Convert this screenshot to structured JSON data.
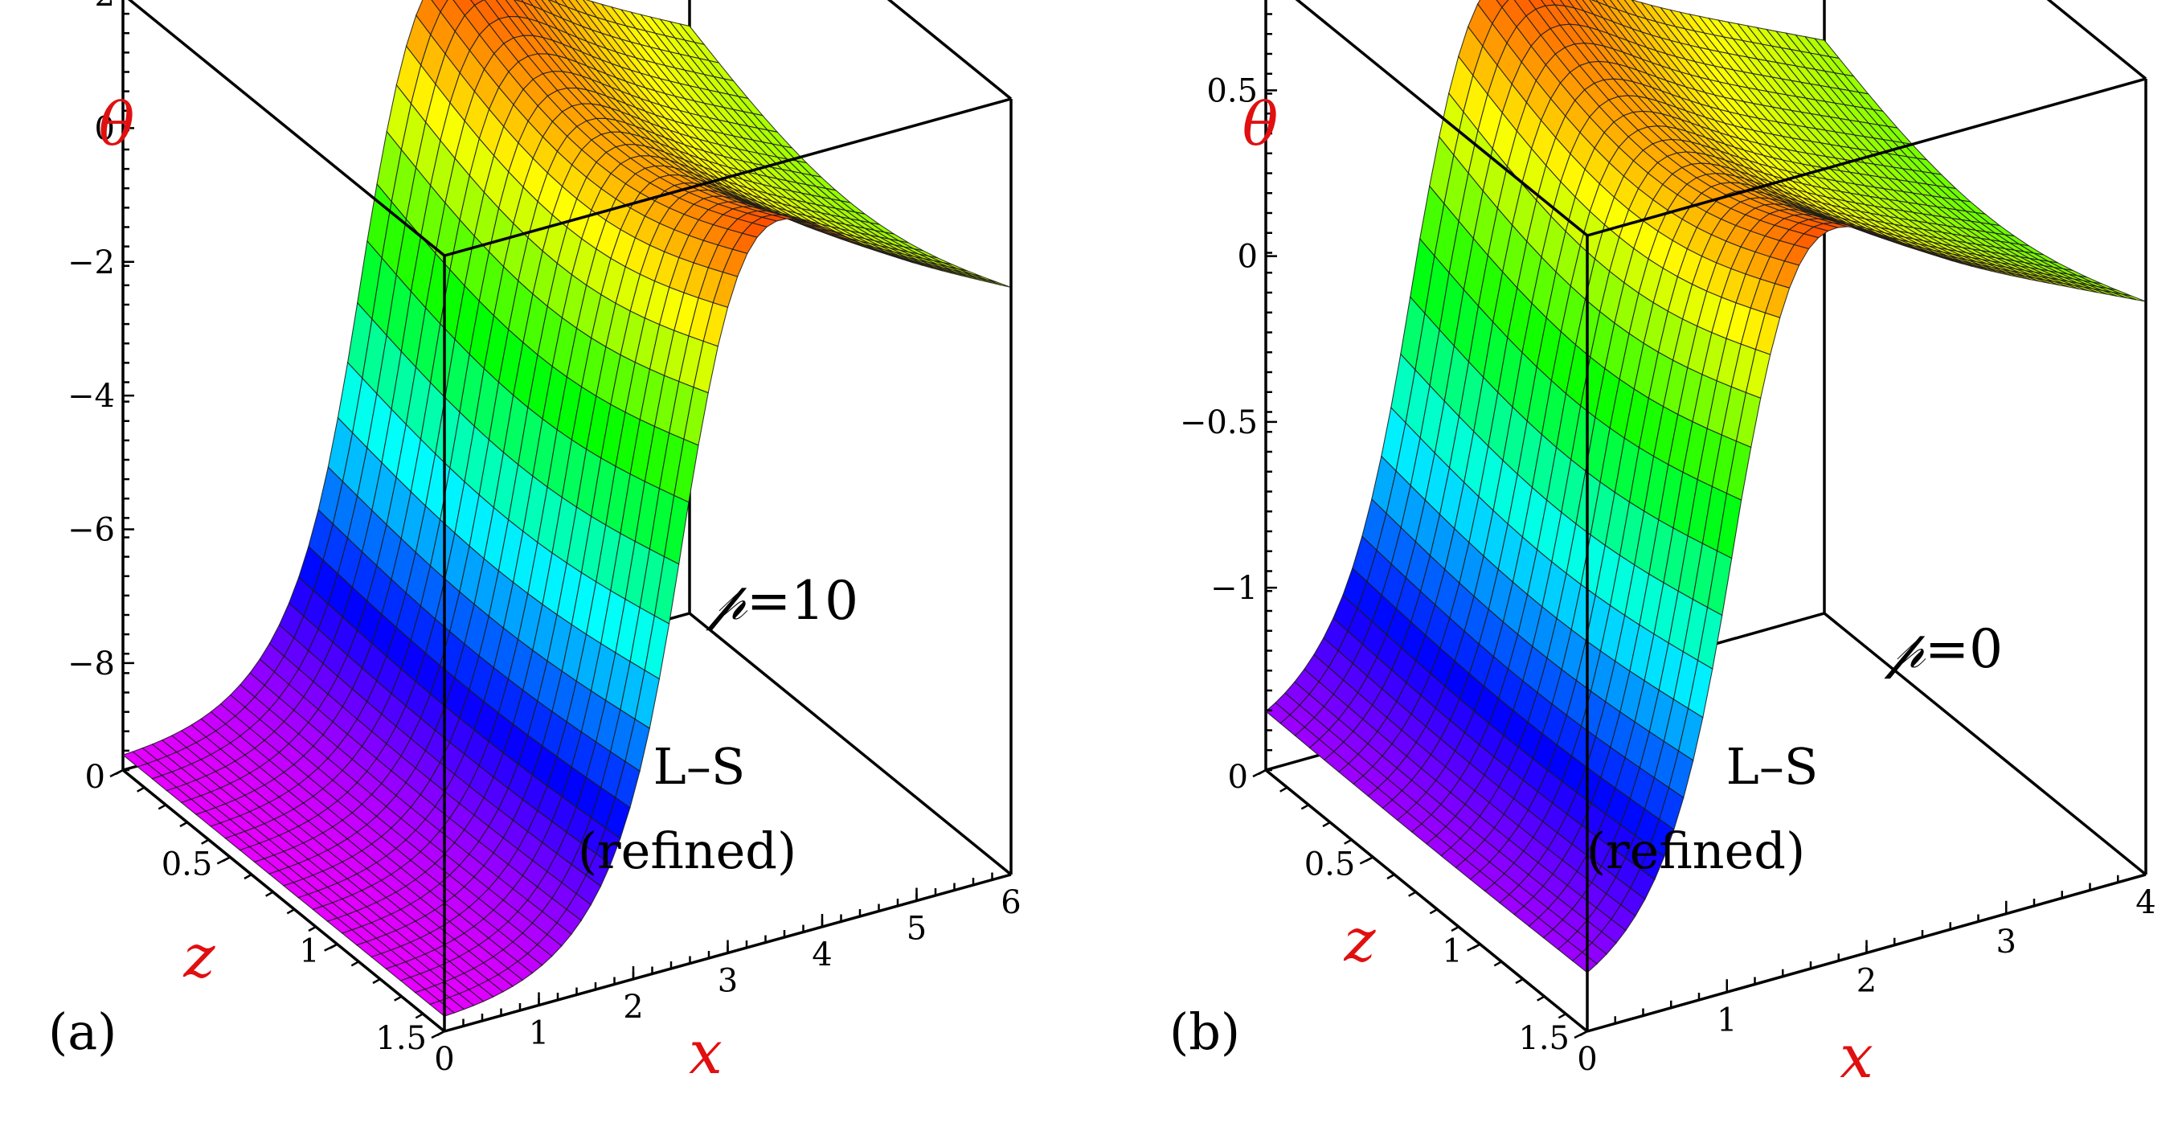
{
  "chart_data": [
    {
      "type": "surface3d",
      "panel_label": "(a)",
      "annotation_method": "L–S",
      "annotation_detail": "(refined)",
      "param_symbol": "𝓅",
      "param_text": "=10",
      "zlabel": "θ",
      "xlabel": "x",
      "ylabel": "z",
      "x_range": [
        0,
        6
      ],
      "z_range": [
        0,
        1.5
      ],
      "theta_range": [
        -9.6,
        2
      ],
      "x_ticks": [
        "0",
        "1",
        "2",
        "3",
        "4",
        "5",
        "6"
      ],
      "z_ticks": [
        "0",
        "0.5",
        "1",
        "1.5"
      ],
      "theta_ticks": [
        "2",
        "0",
        "−2",
        "−4",
        "−6",
        "−8"
      ],
      "x_tick_values": [
        0,
        1,
        2,
        3,
        4,
        5,
        6
      ],
      "z_tick_values": [
        0,
        0.5,
        1,
        1.5
      ],
      "theta_tick_values": [
        2,
        0,
        -2,
        -4,
        -6,
        -8
      ],
      "surface": {
        "base": -9.4,
        "amplitude": 11.0,
        "peak_x": 2.6,
        "width": 1.35,
        "decay": 0.22
      }
    },
    {
      "type": "surface3d",
      "panel_label": "(b)",
      "annotation_method": "L–S",
      "annotation_detail": "(refined)",
      "param_symbol": "𝓅",
      "param_text": "=0",
      "zlabel": "θ",
      "xlabel": "x",
      "ylabel": "z",
      "x_range": [
        0,
        4
      ],
      "z_range": [
        0,
        1.5
      ],
      "theta_range": [
        -1.55,
        0.85
      ],
      "x_ticks": [
        "0",
        "1",
        "2",
        "3",
        "4"
      ],
      "z_ticks": [
        "0",
        "0.5",
        "1",
        "1.5"
      ],
      "theta_ticks": [
        "0.5",
        "0",
        "−0.5",
        "−1"
      ],
      "x_tick_values": [
        0,
        1,
        2,
        3,
        4
      ],
      "z_tick_values": [
        0,
        0.5,
        1,
        1.5
      ],
      "theta_tick_values": [
        0.5,
        0,
        -0.5,
        -1
      ],
      "surface": {
        "base": -1.45,
        "amplitude": 2.2,
        "peak_x": 1.1,
        "width": 0.95,
        "decay": 0.26
      }
    }
  ]
}
